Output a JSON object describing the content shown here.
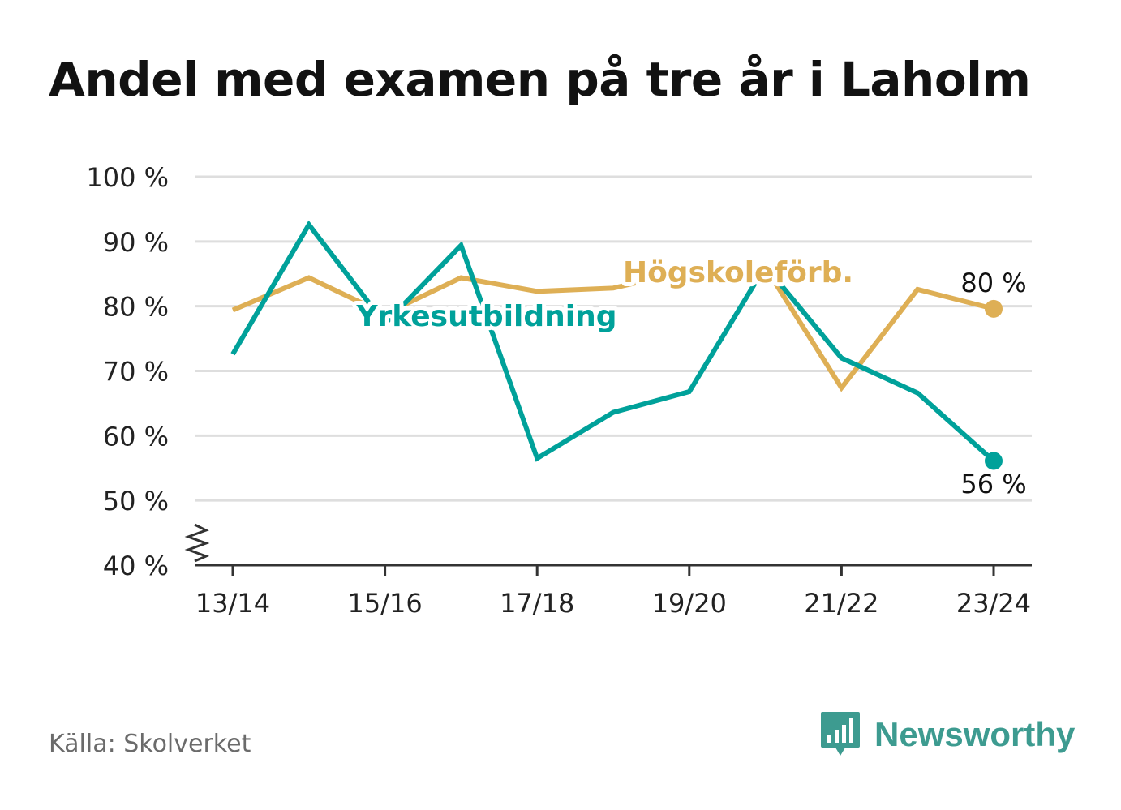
{
  "title": "Andel med examen på tre år i Laholm",
  "source": "Källa: Skolverket",
  "brand": {
    "name": "Newsworthy",
    "icon": "bar-chart-speech-bubble-icon"
  },
  "colors": {
    "yrkes": "#00a19a",
    "hogskole": "#deaf55",
    "grid": "#dedede",
    "axis": "#333333",
    "tick": "#222222"
  },
  "chart_data": {
    "type": "line",
    "x": [
      "13/14",
      "14/15",
      "15/16",
      "16/17",
      "17/18",
      "18/19",
      "19/20",
      "20/21",
      "21/22",
      "22/23",
      "23/24"
    ],
    "xticks": [
      "13/14",
      "15/16",
      "17/18",
      "19/20",
      "21/22",
      "23/24"
    ],
    "ylim": [
      40,
      100
    ],
    "yticks": [
      40,
      50,
      60,
      70,
      80,
      90,
      100
    ],
    "ytick_labels": [
      "40 %",
      "50 %",
      "60 %",
      "70 %",
      "80 %",
      "90 %",
      "100 %"
    ],
    "axis_break": true,
    "grid": true,
    "series": [
      {
        "name": "Högskoleförb.",
        "color": "#deaf55",
        "values": [
          79.4,
          84.4,
          78.8,
          84.4,
          82.3,
          82.8,
          85.5,
          86.0,
          67.4,
          82.6,
          79.6
        ],
        "end_label": "80 %"
      },
      {
        "name": "Yrkesutbildning",
        "color": "#00a19a",
        "values": [
          72.6,
          92.6,
          77.3,
          89.4,
          56.5,
          63.6,
          66.8,
          86.2,
          72.0,
          66.6,
          56.1
        ],
        "end_label": "56 %"
      }
    ]
  }
}
